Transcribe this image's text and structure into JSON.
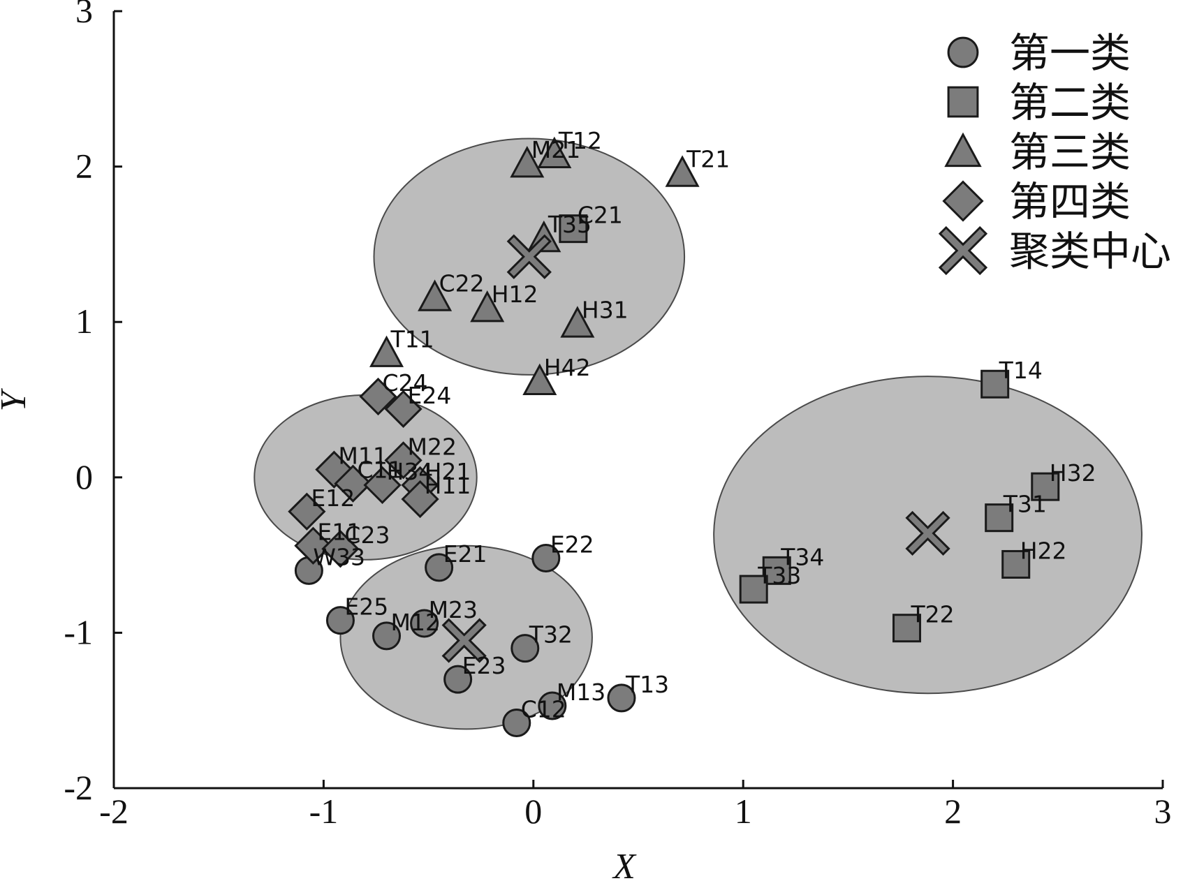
{
  "chart_data": {
    "type": "scatter",
    "xlabel": "X",
    "ylabel": "Y",
    "xlim": [
      -2,
      3
    ],
    "ylim": [
      -2,
      3
    ],
    "xticks": [
      -2,
      -1,
      0,
      1,
      2,
      3
    ],
    "yticks": [
      -2,
      -1,
      0,
      1,
      2,
      3
    ],
    "legend_position": "top-right",
    "colors": {
      "marker_fill": "#7c7c7c",
      "marker_stroke": "#1a1a1a",
      "ellipse_fill": "#bcbcbc",
      "ellipse_stroke": "#4a4a4a"
    },
    "series": [
      {
        "name": "第一类",
        "marker": "circle",
        "points": [
          {
            "label": "E21",
            "x": -0.45,
            "y": -0.58
          },
          {
            "label": "E22",
            "x": 0.06,
            "y": -0.52
          },
          {
            "label": "W33",
            "x": -1.07,
            "y": -0.6
          },
          {
            "label": "E25",
            "x": -0.92,
            "y": -0.92
          },
          {
            "label": "M12",
            "x": -0.7,
            "y": -1.02
          },
          {
            "label": "M23",
            "x": -0.52,
            "y": -0.94
          },
          {
            "label": "T32",
            "x": -0.04,
            "y": -1.1
          },
          {
            "label": "E23",
            "x": -0.36,
            "y": -1.3
          },
          {
            "label": "M13",
            "x": 0.09,
            "y": -1.47
          },
          {
            "label": "T13",
            "x": 0.42,
            "y": -1.42
          },
          {
            "label": "C12",
            "x": -0.08,
            "y": -1.58
          }
        ]
      },
      {
        "name": "第二类",
        "marker": "square",
        "points": [
          {
            "label": "T14",
            "x": 2.2,
            "y": 0.6
          },
          {
            "label": "H32",
            "x": 2.44,
            "y": -0.06
          },
          {
            "label": "T31",
            "x": 2.22,
            "y": -0.26
          },
          {
            "label": "H22",
            "x": 2.3,
            "y": -0.56
          },
          {
            "label": "T34",
            "x": 1.16,
            "y": -0.6
          },
          {
            "label": "T33",
            "x": 1.05,
            "y": -0.72
          },
          {
            "label": "T22",
            "x": 1.78,
            "y": -0.97
          },
          {
            "label": "C21",
            "x": 0.19,
            "y": 1.6
          }
        ]
      },
      {
        "name": "第三类",
        "marker": "triangle",
        "points": [
          {
            "label": "M21",
            "x": -0.03,
            "y": 2.02
          },
          {
            "label": "T12",
            "x": 0.1,
            "y": 2.08
          },
          {
            "label": "T21",
            "x": 0.71,
            "y": 1.96
          },
          {
            "label": "T35",
            "x": 0.05,
            "y": 1.54
          },
          {
            "label": "C22",
            "x": -0.47,
            "y": 1.16
          },
          {
            "label": "H12",
            "x": -0.22,
            "y": 1.09
          },
          {
            "label": "H31",
            "x": 0.21,
            "y": 0.99
          },
          {
            "label": "T11",
            "x": -0.7,
            "y": 0.8
          },
          {
            "label": "H42",
            "x": 0.03,
            "y": 0.62
          }
        ]
      },
      {
        "name": "第四类",
        "marker": "diamond",
        "points": [
          {
            "label": "C24",
            "x": -0.74,
            "y": 0.52
          },
          {
            "label": "E24",
            "x": -0.62,
            "y": 0.44
          },
          {
            "label": "M22",
            "x": -0.62,
            "y": 0.11
          },
          {
            "label": "M11",
            "x": -0.95,
            "y": 0.05
          },
          {
            "label": "C11",
            "x": -0.86,
            "y": -0.04
          },
          {
            "label": "H34",
            "x": -0.72,
            "y": -0.05
          },
          {
            "label": "H21",
            "x": -0.54,
            "y": -0.05
          },
          {
            "label": "H11",
            "x": -0.54,
            "y": -0.14
          },
          {
            "label": "E12",
            "x": -1.08,
            "y": -0.22
          },
          {
            "label": "E11",
            "x": -1.05,
            "y": -0.44
          },
          {
            "label": "C23",
            "x": -0.92,
            "y": -0.46
          }
        ]
      },
      {
        "name": "聚类中心",
        "marker": "x",
        "points": [
          {
            "x": -0.02,
            "y": 1.42
          },
          {
            "x": 1.88,
            "y": -0.36
          },
          {
            "x": -0.33,
            "y": -1.05
          }
        ]
      }
    ],
    "ellipses": [
      {
        "cx": -0.02,
        "cy": 1.42,
        "rx": 0.74,
        "ry": 0.76
      },
      {
        "cx": 1.88,
        "cy": -0.37,
        "rx": 1.02,
        "ry": 1.02
      },
      {
        "cx": -0.32,
        "cy": -1.03,
        "rx": 0.6,
        "ry": 0.59
      },
      {
        "cx": -0.8,
        "cy": 0.0,
        "rx": 0.53,
        "ry": 0.53
      }
    ]
  }
}
